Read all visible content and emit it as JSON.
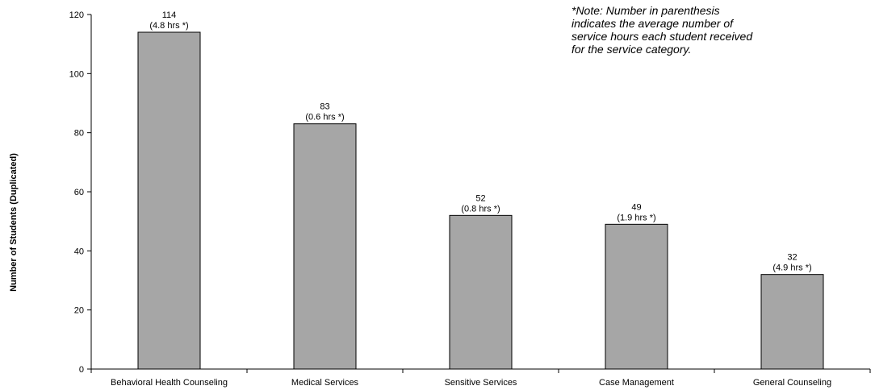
{
  "chart_data": {
    "type": "bar",
    "title": "",
    "xlabel": "",
    "ylabel": "Number of Students (Duplicated)",
    "ylim": [
      0,
      120
    ],
    "yticks": [
      0,
      20,
      40,
      60,
      80,
      100,
      120
    ],
    "grid": false,
    "categories": [
      "Behavioral Health Counseling",
      "Medical Services",
      "Sensitive Services",
      "Case Management",
      "General Counseling"
    ],
    "values": [
      114,
      83,
      52,
      49,
      32
    ],
    "labels": [
      {
        "count": "114",
        "hours": "(4.8 hrs *)"
      },
      {
        "count": "83",
        "hours": "(0.6 hrs *)"
      },
      {
        "count": "52",
        "hours": "(0.8 hrs *)"
      },
      {
        "count": "49",
        "hours": "(1.9 hrs *)"
      },
      {
        "count": "32",
        "hours": "(4.9 hrs *)"
      }
    ],
    "bar_color": "#a6a6a6",
    "note": "*Note: Number in parenthesis\nindicates the average number of\nservice hours each student received\nfor the service category."
  }
}
